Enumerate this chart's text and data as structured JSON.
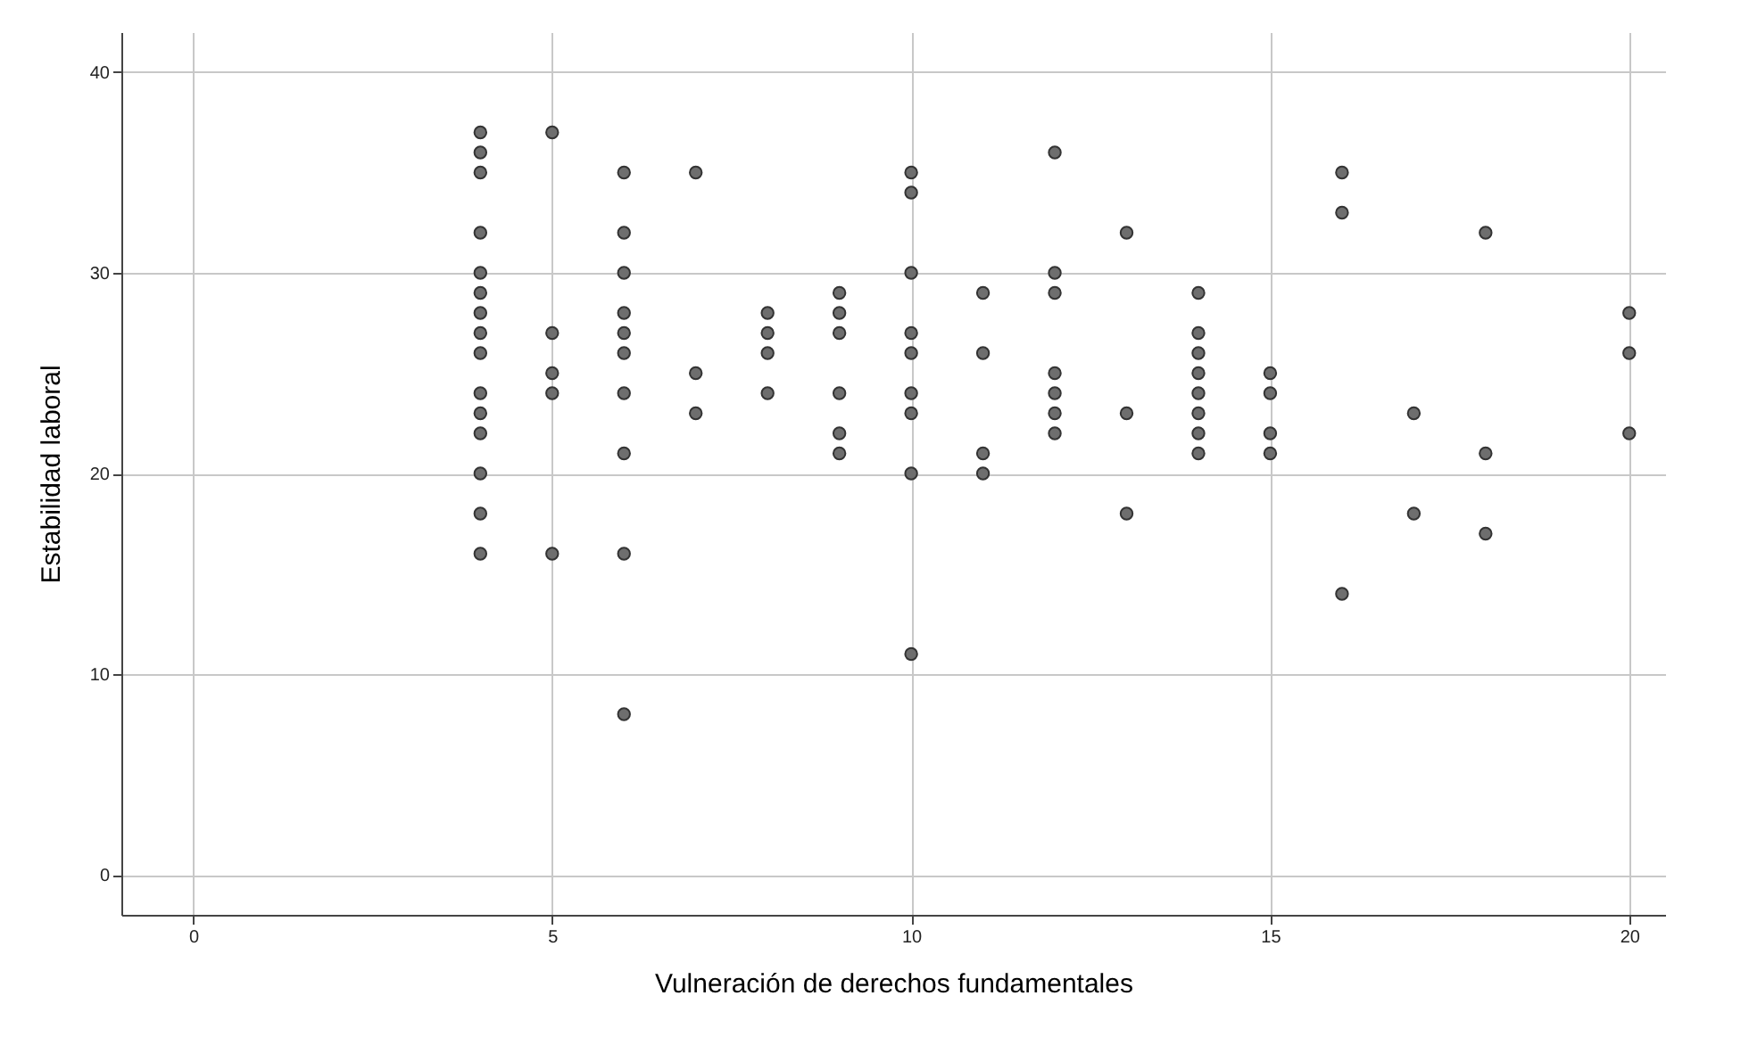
{
  "chart_data": {
    "type": "scatter",
    "xlabel": "Vulneración de derechos fundamentales",
    "ylabel": "Estabilidad laboral",
    "xlim": [
      -1,
      20.5
    ],
    "ylim": [
      -2,
      42
    ],
    "xticks": [
      0,
      5,
      10,
      15,
      20
    ],
    "yticks": [
      0,
      10,
      20,
      30,
      40
    ],
    "grid": true,
    "marker": "circle",
    "series": [
      {
        "color": "#6e6e6e",
        "x": [
          4,
          4,
          4,
          4,
          4,
          4,
          4,
          4,
          4,
          4,
          4,
          4,
          4,
          4,
          4,
          5,
          5,
          5,
          5,
          5,
          6,
          6,
          6,
          6,
          6,
          6,
          6,
          6,
          6,
          6,
          7,
          7,
          7,
          8,
          8,
          8,
          8,
          9,
          9,
          9,
          9,
          9,
          9,
          10,
          10,
          10,
          10,
          10,
          10,
          10,
          10,
          10,
          11,
          11,
          11,
          11,
          12,
          12,
          12,
          12,
          12,
          12,
          12,
          13,
          13,
          13,
          14,
          14,
          14,
          14,
          14,
          14,
          14,
          14,
          15,
          15,
          15,
          15,
          16,
          16,
          16,
          17,
          17,
          18,
          18,
          18,
          20,
          20,
          20
        ],
        "values": [
          37,
          36,
          35,
          32,
          30,
          29,
          28,
          27,
          26,
          24,
          23,
          22,
          20,
          18,
          16,
          37,
          27,
          25,
          24,
          16,
          35,
          32,
          30,
          28,
          27,
          26,
          24,
          21,
          16,
          8,
          35,
          25,
          23,
          28,
          27,
          26,
          24,
          29,
          28,
          27,
          24,
          22,
          21,
          35,
          34,
          30,
          27,
          26,
          24,
          23,
          20,
          11,
          29,
          26,
          21,
          20,
          36,
          30,
          29,
          25,
          24,
          23,
          22,
          32,
          23,
          18,
          29,
          27,
          26,
          25,
          24,
          23,
          22,
          21,
          25,
          24,
          22,
          21,
          35,
          33,
          14,
          23,
          18,
          32,
          21,
          17,
          28,
          26,
          22
        ]
      }
    ]
  }
}
